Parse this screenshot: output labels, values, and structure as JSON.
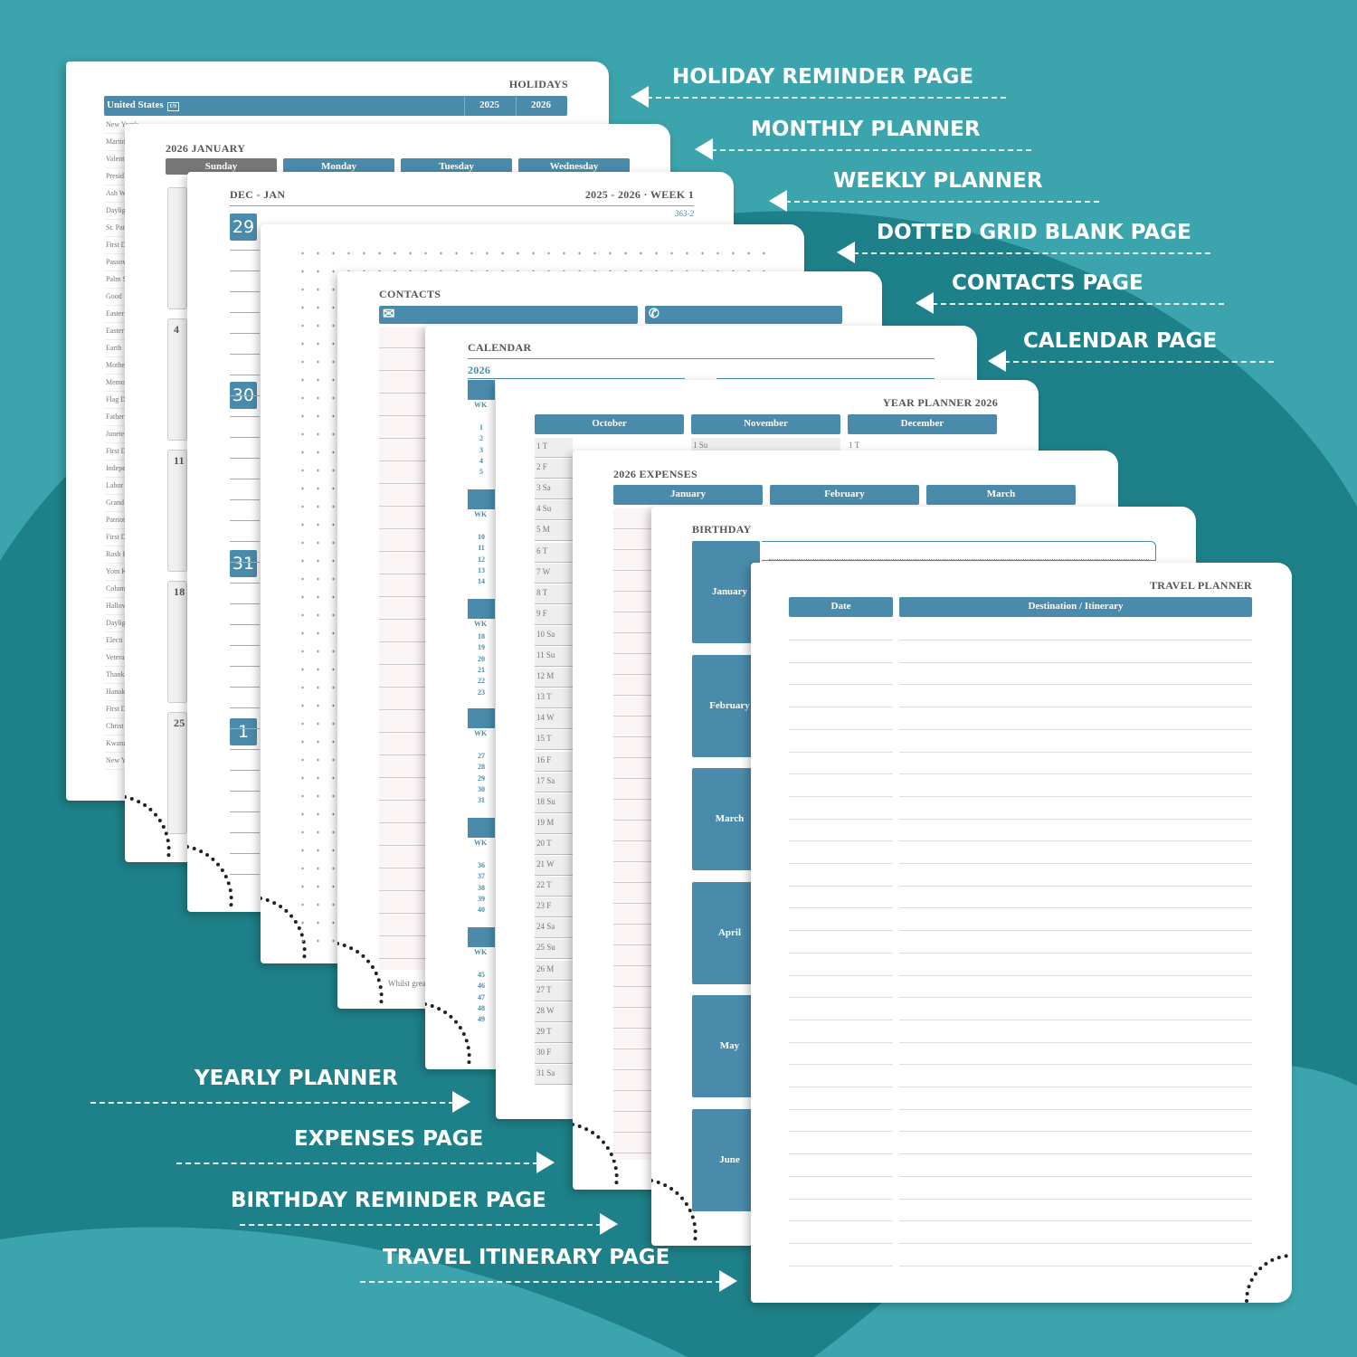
{
  "callouts": {
    "right": [
      "HOLIDAY REMINDER PAGE",
      "MONTHLY PLANNER",
      "WEEKLY PLANNER",
      "DOTTED GRID BLANK PAGE",
      "CONTACTS PAGE",
      "CALENDAR PAGE"
    ],
    "left": [
      "YEARLY PLANNER",
      "EXPENSES PAGE",
      "BIRTHDAY REMINDER PAGE",
      "TRAVEL ITINERARY PAGE"
    ]
  },
  "holidays": {
    "title": "HOLIDAYS",
    "country": "United States",
    "badge": "US",
    "years": [
      "2025",
      "2026"
    ],
    "rows": [
      "New Year's",
      "Martin",
      "Valent",
      "Presid",
      "Ash W",
      "Daylig",
      "St. Pat",
      "First D",
      "Passov",
      "Palm S",
      "Good",
      "Easter",
      "Easter",
      "Earth",
      "Mothe",
      "Memo",
      "Flag D",
      "Father",
      "Junete",
      "First D",
      "Indepe",
      "Labor",
      "Grand",
      "Patriot",
      "First D",
      "Rosh H",
      "Yom K",
      "Colum",
      "Hallow",
      "Daylig",
      "Electi",
      "Vetera",
      "Thank",
      "Hanuk",
      "First D",
      "Christ",
      "Kwanz",
      "New Y"
    ]
  },
  "monthly": {
    "title": "2026 JANUARY",
    "weekdays": [
      "Sunday",
      "Monday",
      "Tuesday",
      "Wednesday"
    ],
    "dates": [
      "4",
      "11",
      "18",
      "25"
    ]
  },
  "weekly": {
    "title": "DEC - JAN",
    "week": "2025 - 2026 · WEEK 1",
    "day_count": "363-2",
    "days": [
      "29",
      "30",
      "31",
      "1"
    ]
  },
  "contacts": {
    "title": "CONTACTS",
    "footer": "Whilst grea"
  },
  "calendar": {
    "title": "CALENDAR",
    "year": "2026",
    "wk": "WK",
    "weeks": [
      [
        "1",
        "2",
        "3",
        "4",
        "5"
      ],
      [
        "10",
        "11",
        "12",
        "13",
        "14"
      ],
      [
        "18",
        "19",
        "20",
        "21",
        "22",
        "23"
      ],
      [
        "27",
        "28",
        "29",
        "30",
        "31"
      ],
      [
        "36",
        "37",
        "38",
        "39",
        "40"
      ],
      [
        "45",
        "46",
        "47",
        "48",
        "49"
      ]
    ]
  },
  "year_planner": {
    "title": "YEAR PLANNER 2026",
    "months": [
      "October",
      "November",
      "December"
    ],
    "october": [
      "1 T",
      "2 F",
      "3 Sa",
      "4 Su",
      "5 M",
      "6 T",
      "7 W",
      "8 T",
      "9 F",
      "10 Sa",
      "11 Su",
      "12 M",
      "13 T",
      "14 W",
      "15 T",
      "16 F",
      "17 Sa",
      "18 Su",
      "19 M",
      "20 T",
      "21 W",
      "22 T",
      "23 F",
      "24 Sa",
      "25 Su",
      "26 M",
      "27 T",
      "28 W",
      "29 T",
      "30 F",
      "31 Sa"
    ],
    "november_first": "1 Su",
    "december_first": "1 T"
  },
  "expenses": {
    "title": "2026 EXPENSES",
    "months": [
      "January",
      "February",
      "March"
    ]
  },
  "birthday": {
    "title": "BIRTHDAY",
    "months": [
      "January",
      "February",
      "March",
      "April",
      "May",
      "June"
    ]
  },
  "travel": {
    "title": "TRAVEL PLANNER",
    "columns": [
      "Date",
      "Destination / Itinerary"
    ]
  }
}
